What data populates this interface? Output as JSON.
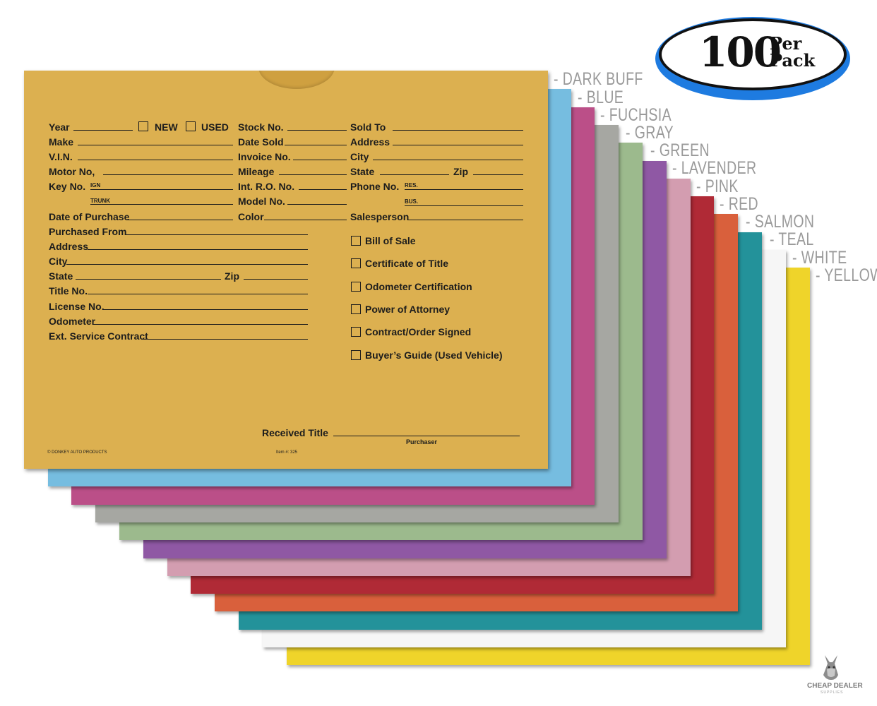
{
  "badge": {
    "number": "100",
    "per": "Per",
    "pack": "Pack"
  },
  "colors": [
    {
      "label": "- DARK BUFF",
      "hex": "#dcb050"
    },
    {
      "label": "- BLUE",
      "hex": "#76bde0"
    },
    {
      "label": "- FUCHSIA",
      "hex": "#bb4f88"
    },
    {
      "label": "- GRAY",
      "hex": "#a6a7a2"
    },
    {
      "label": "- GREEN",
      "hex": "#9cba8d"
    },
    {
      "label": "- LAVENDER",
      "hex": "#8f58a4"
    },
    {
      "label": "- PINK",
      "hex": "#d39db0"
    },
    {
      "label": "- RED",
      "hex": "#b02a36"
    },
    {
      "label": "- SALMON",
      "hex": "#d9603c"
    },
    {
      "label": "- TEAL",
      "hex": "#23929a"
    },
    {
      "label": "- WHITE",
      "hex": "#f6f6f6"
    },
    {
      "label": "- YELLOW",
      "hex": "#efd42a"
    }
  ],
  "form": {
    "year": "Year",
    "new": "NEW",
    "used": "USED",
    "stock_no": "Stock No.",
    "sold_to": "Sold To",
    "make": "Make",
    "date_sold": "Date Sold",
    "address_r": "Address",
    "vin": "V.I.N.",
    "invoice_no": "Invoice No.",
    "city_r": "City",
    "motor_no": "Motor No,",
    "mileage": "Mileage",
    "state_r": "State",
    "zip_r": "Zip",
    "key_no": "Key No.",
    "ign": "IGN",
    "int_ro_no": "Int. R.O. No.",
    "phone_no": "Phone No.",
    "res": "RES.",
    "trunk": "TRUNK",
    "model_no": "Model No.",
    "bus": "BUS.",
    "date_of_purchase": "Date of Purchase",
    "color": "Color",
    "salesperson": "Salesperson",
    "purchased_from": "Purchased From",
    "address": "Address",
    "city": "City",
    "state": "State",
    "zip": "Zip",
    "title_no": "Title No.",
    "license_no": "License No.",
    "odometer": "Odometer",
    "ext_service_contract": "Ext. Service Contract",
    "received_title": "Received Title",
    "purchaser": "Purchaser",
    "brand": "© DONKEY AUTO PRODUCTS",
    "item": "Item #: 325"
  },
  "checklist": [
    "Bill of Sale",
    "Certificate of Title",
    "Odometer Certification",
    "Power of Attorney",
    "Contract/Order Signed",
    "Buyer’s Guide (Used Vehicle)"
  ],
  "logo": {
    "line1": "CHEAP DEALER",
    "line2": "SUPPLIES"
  }
}
